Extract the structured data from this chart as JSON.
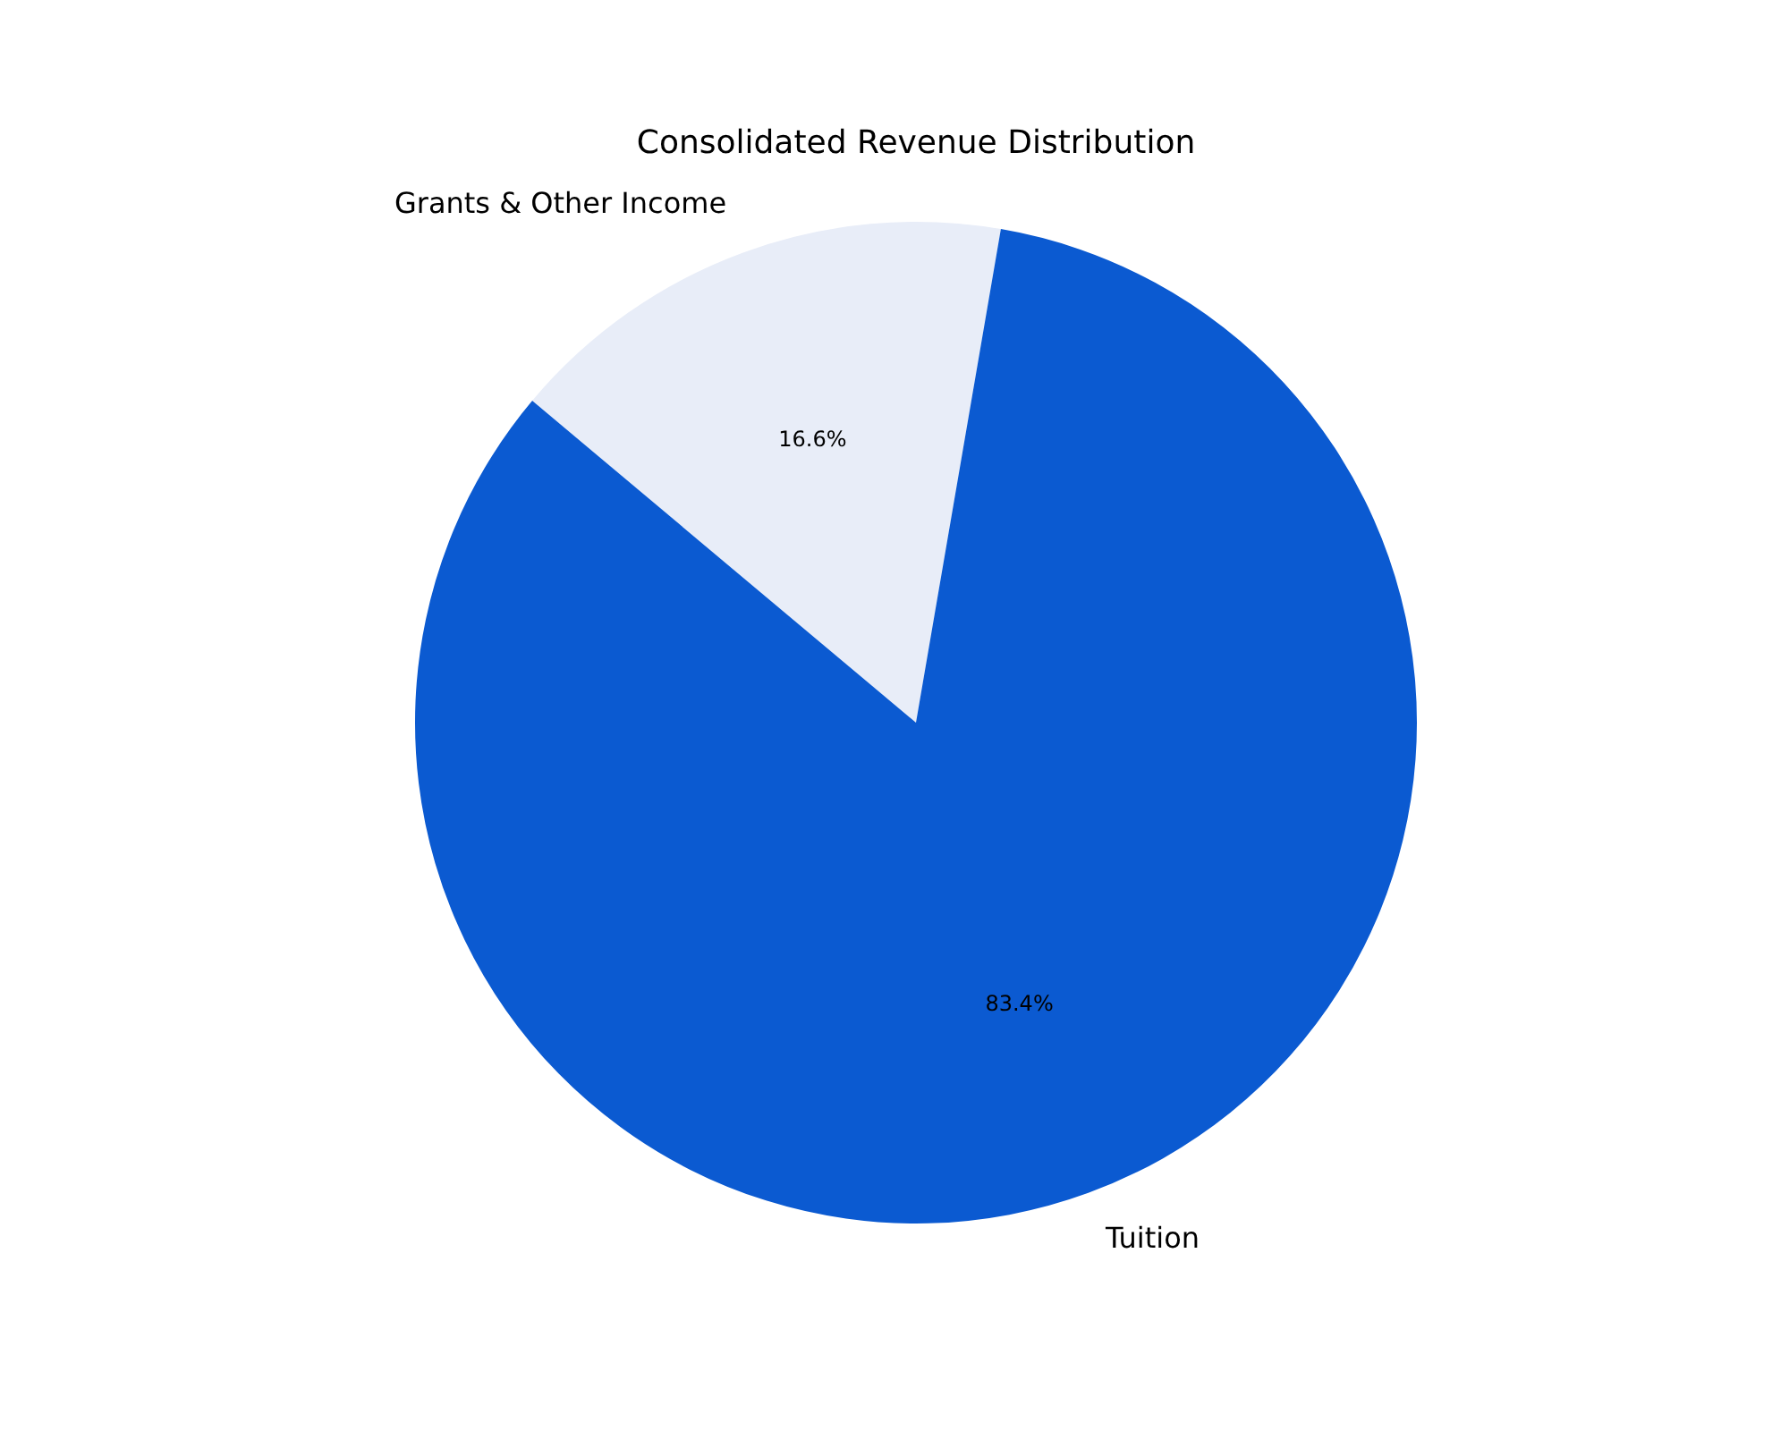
{
  "chart_data": {
    "type": "pie",
    "title": "Consolidated Revenue Distribution",
    "categories": [
      "Grants & Other Income",
      "Tuition"
    ],
    "values": [
      16.6,
      83.4
    ],
    "colors": [
      "#e8edf8",
      "#0b5ad1"
    ],
    "value_labels": [
      "16.6%",
      "83.4%"
    ],
    "legend": false
  }
}
